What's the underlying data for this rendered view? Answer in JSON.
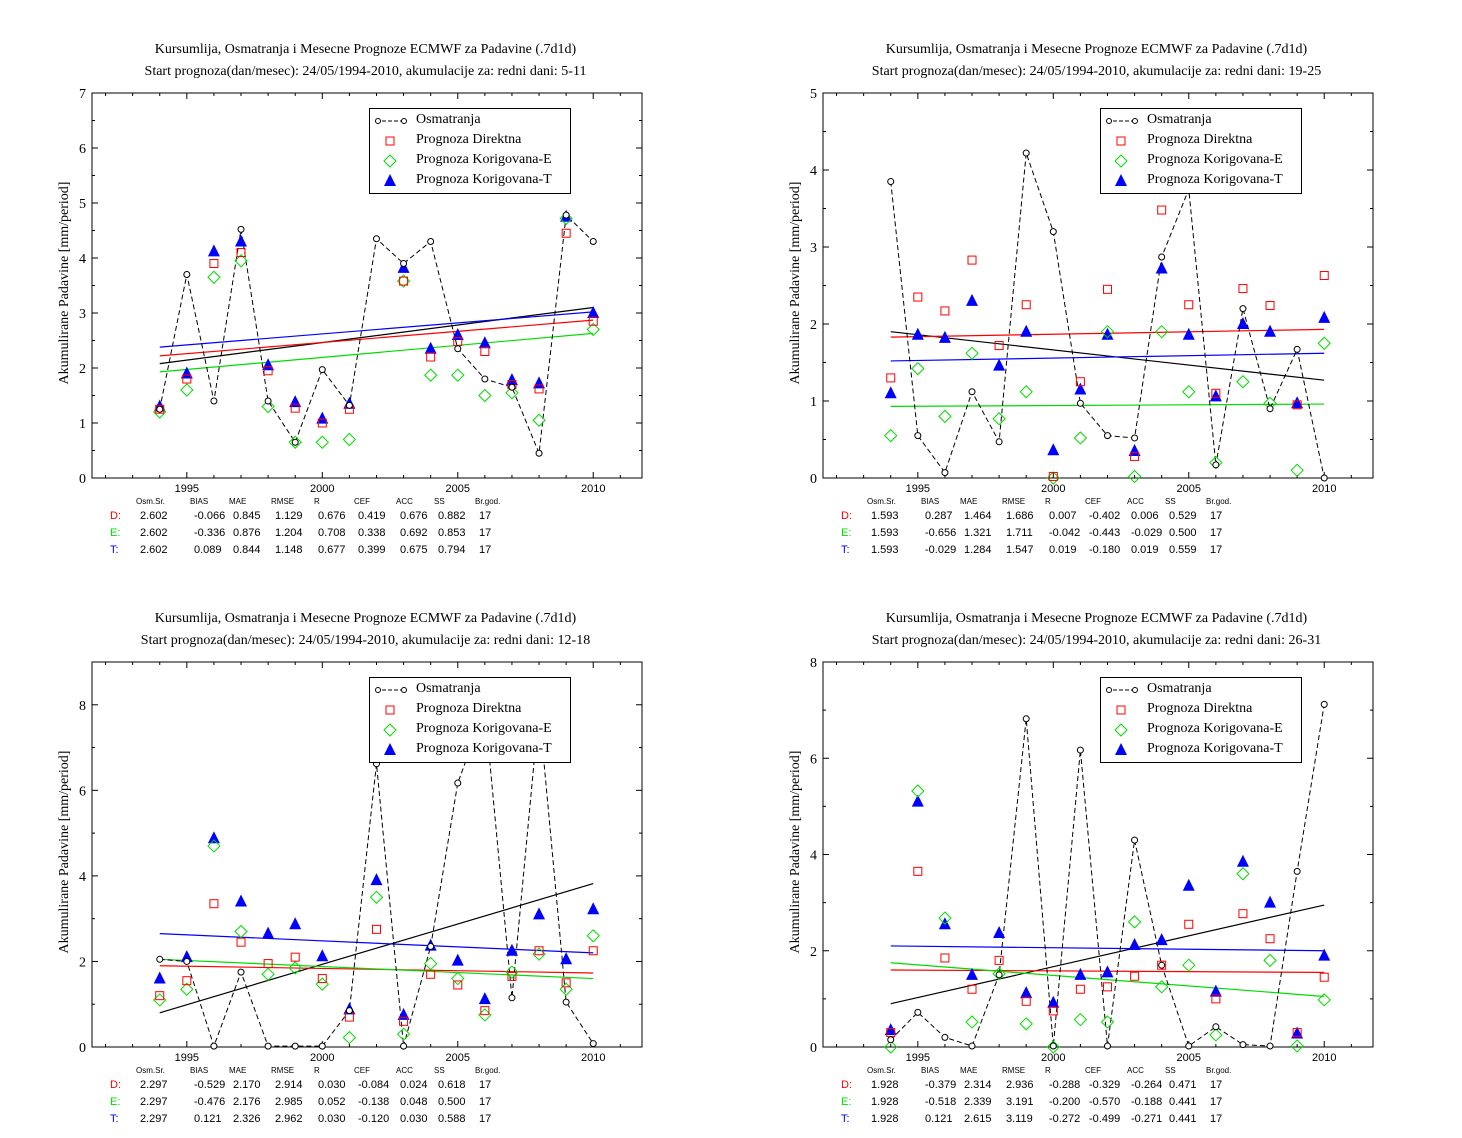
{
  "legend": {
    "obs": "Osmatranja",
    "direct": "Prognoza Direktna",
    "corrE": "Prognoza Korigovana-E",
    "corrT": "Prognoza Korigovana-T"
  },
  "colors": {
    "obs": "#000000",
    "direct": "#ff0000",
    "corrE": "#00dd00",
    "corrT": "#0000ff"
  },
  "stat_headers": [
    "Osm.Sr.",
    "BIAS",
    "MAE",
    "RMSE",
    "R",
    "CEF",
    "ACC",
    "SS",
    "Br.god."
  ],
  "chart_data": [
    {
      "type": "scatter",
      "title": "Kursumlija, Osmatranja i Mesecne Prognoze ECMWF za Padavine (.7d1d)",
      "subtitle": "Start prognoza(dan/mesec): 24/05/1994-2010, akumulacije za: redni dani: 5-11",
      "ylabel": "Akumulirane Padavine [mm/period]",
      "xlim": [
        1991.5,
        2011.8
      ],
      "ylim": [
        0,
        7
      ],
      "yticks": [
        "0",
        "1",
        "2",
        "3",
        "4",
        "5",
        "6",
        "7"
      ],
      "xticks": [
        "1995",
        "2000",
        "2005",
        "2010"
      ],
      "x": [
        1994,
        1995,
        1996,
        1997,
        1998,
        1999,
        2000,
        2001,
        2002,
        2003,
        2004,
        2005,
        2006,
        2007,
        2008,
        2009,
        2010
      ],
      "obs": [
        1.25,
        3.7,
        1.4,
        4.52,
        1.4,
        0.65,
        1.97,
        1.32,
        4.35,
        3.9,
        4.3,
        2.35,
        1.8,
        1.65,
        0.45,
        4.78,
        4.3
      ],
      "direct": [
        1.25,
        1.8,
        3.9,
        4.1,
        1.95,
        1.27,
        1.0,
        1.25,
        5.48,
        3.58,
        2.2,
        2.48,
        2.3,
        1.7,
        1.62,
        4.45,
        2.85
      ],
      "corrE": [
        1.2,
        1.6,
        3.65,
        3.95,
        1.3,
        0.65,
        0.65,
        0.7,
        6.05,
        3.58,
        1.87,
        1.87,
        1.5,
        1.55,
        1.05,
        4.72,
        2.7
      ],
      "corrT": [
        1.3,
        1.9,
        4.12,
        4.3,
        2.05,
        1.38,
        1.08,
        1.35,
        5.78,
        3.82,
        2.35,
        2.6,
        2.45,
        1.78,
        1.72,
        4.75,
        3.0
      ],
      "trends": {
        "obs": [
          2.08,
          3.1
        ],
        "direct": [
          2.22,
          2.87
        ],
        "corrE": [
          1.93,
          2.63
        ],
        "corrT": [
          2.38,
          3.02
        ]
      },
      "stats": {
        "D": [
          "2.602",
          "-0.066",
          "0.845",
          "1.129",
          "0.676",
          "0.419",
          "0.676",
          "0.882",
          "17"
        ],
        "E": [
          "2.602",
          "-0.336",
          "0.876",
          "1.204",
          "0.708",
          "0.338",
          "0.692",
          "0.853",
          "17"
        ],
        "T": [
          "2.602",
          "0.089",
          "0.844",
          "1.148",
          "0.677",
          "0.399",
          "0.675",
          "0.794",
          "17"
        ]
      }
    },
    {
      "type": "scatter",
      "title": "Kursumlija, Osmatranja i Mesecne Prognoze ECMWF za Padavine (.7d1d)",
      "subtitle": "Start prognoza(dan/mesec): 24/05/1994-2010, akumulacije za: redni dani: 19-25",
      "ylabel": "Akumulirane Padavine [mm/period]",
      "xlim": [
        1991.5,
        2011.8
      ],
      "ylim": [
        0,
        5
      ],
      "yticks": [
        "0",
        "1",
        "2",
        "3",
        "4",
        "5"
      ],
      "xticks": [
        "1995",
        "2000",
        "2005",
        "2010"
      ],
      "x": [
        1994,
        1995,
        1996,
        1997,
        1998,
        1999,
        2000,
        2001,
        2002,
        2003,
        2004,
        2005,
        2006,
        2007,
        2008,
        2009,
        2010
      ],
      "obs": [
        3.85,
        0.55,
        0.07,
        1.12,
        0.47,
        4.22,
        3.2,
        0.97,
        0.55,
        0.52,
        2.87,
        3.75,
        0.17,
        2.2,
        0.9,
        1.67,
        0.0
      ],
      "direct": [
        1.3,
        2.35,
        2.17,
        2.83,
        1.72,
        2.25,
        0.02,
        1.25,
        2.45,
        0.28,
        3.48,
        2.25,
        1.1,
        2.46,
        2.24,
        0.95,
        2.63
      ],
      "corrE": [
        0.55,
        1.42,
        0.8,
        1.62,
        0.77,
        1.12,
        0.0,
        0.52,
        1.9,
        0.02,
        1.9,
        1.12,
        0.2,
        1.25,
        0.97,
        0.1,
        1.75
      ],
      "corrT": [
        1.1,
        1.86,
        1.82,
        2.3,
        1.46,
        1.9,
        0.36,
        1.15,
        1.86,
        0.35,
        2.72,
        1.86,
        1.06,
        2.0,
        1.9,
        0.97,
        2.08
      ],
      "trends": {
        "obs": [
          1.9,
          1.27
        ],
        "direct": [
          1.83,
          1.93
        ],
        "corrE": [
          0.93,
          0.96
        ],
        "corrT": [
          1.52,
          1.62
        ]
      },
      "stats": {
        "D": [
          "1.593",
          "0.287",
          "1.464",
          "1.686",
          "0.007",
          "-0.402",
          "0.006",
          "0.529",
          "17"
        ],
        "E": [
          "1.593",
          "-0.656",
          "1.321",
          "1.711",
          "-0.042",
          "-0.443",
          "-0.029",
          "0.500",
          "17"
        ],
        "T": [
          "1.593",
          "-0.029",
          "1.284",
          "1.547",
          "0.019",
          "-0.180",
          "0.019",
          "0.559",
          "17"
        ]
      }
    },
    {
      "type": "scatter",
      "title": "Kursumlija, Osmatranja i Mesecne Prognoze ECMWF za Padavine (.7d1d)",
      "subtitle": "Start prognoza(dan/mesec): 24/05/1994-2010, akumulacije za: redni dani: 12-18",
      "ylabel": "Akumulirane Padavine [mm/period]",
      "xlim": [
        1991.5,
        2011.8
      ],
      "ylim": [
        0,
        9
      ],
      "yticks": [
        "0",
        "2",
        "4",
        "6",
        "8"
      ],
      "xticks": [
        "1995",
        "2000",
        "2005",
        "2010"
      ],
      "x": [
        1994,
        1995,
        1996,
        1997,
        1998,
        1999,
        2000,
        2001,
        2002,
        2003,
        2004,
        2005,
        2006,
        2007,
        2008,
        2009,
        2010
      ],
      "obs": [
        2.05,
        2.0,
        0.02,
        1.75,
        0.02,
        0.02,
        0.02,
        0.85,
        6.62,
        0.02,
        2.35,
        6.17,
        7.9,
        1.15,
        7.9,
        1.05,
        0.08
      ],
      "direct": [
        1.2,
        1.55,
        3.35,
        2.45,
        1.95,
        2.1,
        1.6,
        0.7,
        2.75,
        0.6,
        1.7,
        1.45,
        0.85,
        1.65,
        2.25,
        1.5,
        2.25
      ],
      "corrE": [
        1.1,
        1.35,
        4.7,
        2.7,
        1.7,
        1.85,
        1.47,
        0.22,
        3.5,
        0.3,
        1.95,
        1.6,
        0.75,
        1.75,
        2.17,
        1.35,
        2.6
      ],
      "corrT": [
        1.6,
        2.1,
        4.88,
        3.4,
        2.65,
        2.87,
        2.12,
        0.88,
        3.9,
        0.75,
        2.37,
        2.02,
        1.12,
        2.25,
        3.1,
        2.05,
        3.22
      ],
      "trends": {
        "obs": [
          0.8,
          3.82
        ],
        "direct": [
          1.9,
          1.73
        ],
        "corrE": [
          2.05,
          1.6
        ],
        "corrT": [
          2.65,
          2.2
        ]
      },
      "stats": {
        "D": [
          "2.297",
          "-0.529",
          "2.170",
          "2.914",
          "0.030",
          "-0.084",
          "0.024",
          "0.618",
          "17"
        ],
        "E": [
          "2.297",
          "-0.476",
          "2.176",
          "2.985",
          "0.052",
          "-0.138",
          "0.048",
          "0.500",
          "17"
        ],
        "T": [
          "2.297",
          "0.121",
          "2.326",
          "2.962",
          "0.030",
          "-0.120",
          "0.030",
          "0.588",
          "17"
        ]
      }
    },
    {
      "type": "scatter",
      "title": "Kursumlija, Osmatranja i Mesecne Prognoze ECMWF za Padavine (.7d1d)",
      "subtitle": "Start prognoza(dan/mesec): 24/05/1994-2010, akumulacije za: redni dani: 26-31",
      "ylabel": "Akumulirane Padavine [mm/period]",
      "xlim": [
        1991.5,
        2011.8
      ],
      "ylim": [
        0,
        8
      ],
      "yticks": [
        "0",
        "2",
        "4",
        "6",
        "8"
      ],
      "xticks": [
        "1995",
        "2000",
        "2005",
        "2010"
      ],
      "x": [
        1994,
        1995,
        1996,
        1997,
        1998,
        1999,
        2000,
        2001,
        2002,
        2003,
        2004,
        2005,
        2006,
        2007,
        2008,
        2009,
        2010
      ],
      "obs": [
        0.15,
        0.72,
        0.2,
        0.02,
        1.5,
        6.82,
        0.02,
        6.17,
        0.02,
        4.3,
        1.7,
        0.02,
        0.42,
        0.05,
        0.02,
        3.65,
        7.12
      ],
      "direct": [
        0.3,
        3.65,
        1.85,
        1.2,
        1.8,
        0.95,
        0.75,
        1.2,
        1.25,
        1.47,
        1.7,
        2.55,
        1.0,
        2.77,
        2.25,
        0.3,
        1.45
      ],
      "corrE": [
        0.0,
        5.32,
        2.68,
        0.52,
        1.52,
        0.48,
        0.0,
        0.57,
        0.52,
        2.6,
        1.25,
        1.7,
        0.25,
        3.6,
        1.8,
        0.02,
        0.98
      ],
      "corrT": [
        0.35,
        5.1,
        2.55,
        1.5,
        2.37,
        1.12,
        0.92,
        1.5,
        1.55,
        2.12,
        2.22,
        3.35,
        1.15,
        3.85,
        3.0,
        0.28,
        1.9
      ],
      "trends": {
        "obs": [
          0.9,
          2.95
        ],
        "direct": [
          1.6,
          1.55
        ],
        "corrE": [
          1.75,
          1.05
        ],
        "corrT": [
          2.1,
          2.0
        ]
      },
      "stats": {
        "D": [
          "1.928",
          "-0.379",
          "2.314",
          "2.936",
          "-0.288",
          "-0.329",
          "-0.264",
          "0.471",
          "17"
        ],
        "E": [
          "1.928",
          "-0.518",
          "2.339",
          "3.191",
          "-0.200",
          "-0.570",
          "-0.188",
          "0.441",
          "17"
        ],
        "T": [
          "1.928",
          "0.121",
          "2.615",
          "3.119",
          "-0.272",
          "-0.499",
          "-0.271",
          "0.441",
          "17"
        ]
      }
    }
  ]
}
